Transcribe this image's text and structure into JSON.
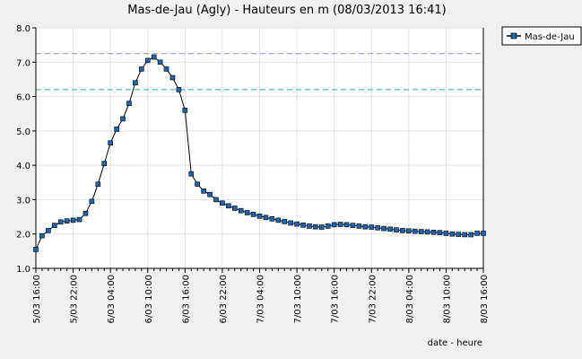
{
  "chart_data": {
    "type": "line",
    "title": "Mas-de-Jau (Agly) - Hauteurs en m (08/03/2013 16:41)",
    "xlabel": "date - heure",
    "ylabel": "",
    "ylim": [
      1.0,
      8.0
    ],
    "yticks": [
      "1.0",
      "2.0",
      "3.0",
      "4.0",
      "5.0",
      "6.0",
      "7.0",
      "8.0"
    ],
    "xticks": [
      "5/03 16:00",
      "5/03 22:00",
      "6/03 04:00",
      "6/03 10:00",
      "6/03 16:00",
      "6/03 22:00",
      "7/03 04:00",
      "7/03 10:00",
      "7/03 16:00",
      "7/03 22:00",
      "8/03 04:00",
      "8/03 10:00",
      "8/03 16:00"
    ],
    "grid": true,
    "legend_position": "top-right",
    "thresholds": [
      {
        "value": 7.25,
        "color": "#8888cc"
      },
      {
        "value": 6.2,
        "color": "#22aaaa"
      }
    ],
    "series": [
      {
        "name": "Mas-de-Jau",
        "color": "#1a66b0",
        "marker": "square",
        "x": [
          0,
          1,
          2,
          3,
          4,
          5,
          6,
          7,
          8,
          9,
          10,
          11,
          12,
          13,
          14,
          15,
          16,
          17,
          18,
          19,
          20,
          21,
          22,
          23,
          24,
          25,
          26,
          27,
          28,
          29,
          30,
          31,
          32,
          33,
          34,
          35,
          36,
          37,
          38,
          39,
          40,
          41,
          42,
          43,
          44,
          45,
          46,
          47,
          48,
          49,
          50,
          51,
          52,
          53,
          54,
          55,
          56,
          57,
          58,
          59,
          60,
          61,
          62,
          63,
          64,
          65,
          66,
          67,
          68,
          69,
          70,
          71,
          72
        ],
        "y": [
          1.55,
          1.95,
          2.1,
          2.25,
          2.35,
          2.38,
          2.4,
          2.42,
          2.6,
          2.95,
          3.45,
          4.05,
          4.65,
          5.05,
          5.35,
          5.8,
          6.4,
          6.8,
          7.05,
          7.15,
          7.0,
          6.8,
          6.55,
          6.2,
          5.6,
          3.75,
          3.45,
          3.25,
          3.15,
          3.0,
          2.9,
          2.82,
          2.75,
          2.68,
          2.62,
          2.57,
          2.52,
          2.48,
          2.44,
          2.4,
          2.36,
          2.32,
          2.29,
          2.26,
          2.23,
          2.21,
          2.2,
          2.23,
          2.27,
          2.28,
          2.27,
          2.25,
          2.23,
          2.21,
          2.2,
          2.18,
          2.16,
          2.14,
          2.12,
          2.1,
          2.09,
          2.08,
          2.07,
          2.06,
          2.05,
          2.04,
          2.02,
          2.0,
          1.99,
          1.98,
          1.98,
          2.02,
          2.02
        ]
      }
    ]
  }
}
